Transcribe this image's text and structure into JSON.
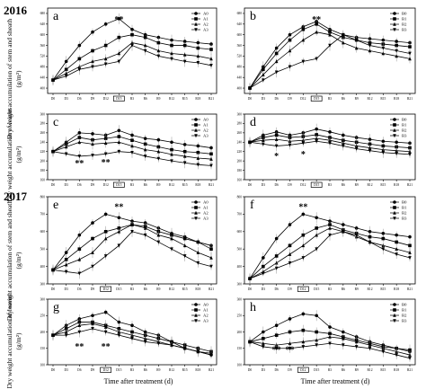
{
  "figure": {
    "years": [
      "2016",
      "2017"
    ],
    "ylabels": [
      "Dry weight accumulation of stem and sheath",
      "(g/m²)",
      "Dry weight accumulation of leaves",
      "(g/m²)"
    ],
    "xlabel": "Time after treatment (d)"
  },
  "chart_data": [
    {
      "panel": "a",
      "type": "line",
      "year": "2016",
      "categories": [
        "D0",
        "D3",
        "D6",
        "D9",
        "D12",
        "D15",
        "R3",
        "R6",
        "R9",
        "R12",
        "R15",
        "R18",
        "R21"
      ],
      "highlight_category": "D15",
      "ylim": [
        380,
        700
      ],
      "yticks": [
        400,
        440,
        480,
        520,
        560,
        600,
        640,
        680
      ],
      "annotations": [
        {
          "text": "**",
          "x": "D15",
          "y": 660
        }
      ],
      "series": [
        {
          "name": "A0",
          "marker": "circle",
          "values": [
            430,
            500,
            560,
            610,
            640,
            660,
            620,
            600,
            590,
            580,
            575,
            570,
            565
          ]
        },
        {
          "name": "A1",
          "marker": "square",
          "values": [
            430,
            470,
            510,
            540,
            560,
            590,
            600,
            590,
            570,
            560,
            560,
            550,
            545
          ]
        },
        {
          "name": "A2",
          "marker": "triangle",
          "values": [
            430,
            455,
            480,
            500,
            510,
            530,
            570,
            560,
            540,
            530,
            525,
            520,
            510
          ]
        },
        {
          "name": "A3",
          "marker": "down",
          "values": [
            430,
            445,
            470,
            480,
            490,
            500,
            560,
            540,
            520,
            510,
            500,
            495,
            485
          ]
        }
      ]
    },
    {
      "panel": "b",
      "type": "line",
      "year": "2016",
      "categories": [
        "D0",
        "D3",
        "D6",
        "D9",
        "D12",
        "D15",
        "R3",
        "R6",
        "R9",
        "R12",
        "R15",
        "R18",
        "R21"
      ],
      "highlight_category": "D15",
      "ylim": [
        380,
        700
      ],
      "yticks": [
        400,
        440,
        480,
        520,
        560,
        600,
        640,
        680
      ],
      "annotations": [
        {
          "text": "**",
          "x": "D15",
          "y": 660
        }
      ],
      "series": [
        {
          "name": "B0",
          "marker": "circle",
          "values": [
            400,
            480,
            550,
            600,
            630,
            650,
            620,
            600,
            590,
            585,
            580,
            575,
            570
          ]
        },
        {
          "name": "B1",
          "marker": "square",
          "values": [
            400,
            470,
            530,
            580,
            620,
            640,
            610,
            590,
            580,
            570,
            565,
            560,
            555
          ]
        },
        {
          "name": "B2",
          "marker": "triangle",
          "values": [
            400,
            450,
            500,
            540,
            580,
            610,
            600,
            570,
            550,
            540,
            530,
            520,
            510
          ]
        },
        {
          "name": "B3",
          "marker": "down",
          "values": [
            400,
            430,
            460,
            480,
            500,
            510,
            560,
            600,
            580,
            560,
            550,
            540,
            530
          ]
        }
      ]
    },
    {
      "panel": "c",
      "type": "line",
      "year": "2016",
      "categories": [
        "D0",
        "D3",
        "D6",
        "D9",
        "D12",
        "D15",
        "R3",
        "R6",
        "R9",
        "R12",
        "R15",
        "R18",
        "R21"
      ],
      "highlight_category": "D15",
      "ylim": [
        160,
        300
      ],
      "yticks": [
        160,
        180,
        200,
        220,
        240,
        260,
        280,
        300
      ],
      "annotations": [
        {
          "text": "**",
          "x": "D6",
          "y": 196
        },
        {
          "text": "**",
          "x": "D12",
          "y": 198
        }
      ],
      "series": [
        {
          "name": "A0",
          "marker": "circle",
          "values": [
            220,
            240,
            260,
            258,
            255,
            265,
            255,
            248,
            245,
            240,
            235,
            232,
            228
          ]
        },
        {
          "name": "A1",
          "marker": "square",
          "values": [
            220,
            236,
            250,
            245,
            248,
            252,
            244,
            236,
            230,
            224,
            220,
            218,
            215
          ]
        },
        {
          "name": "A2",
          "marker": "triangle",
          "values": [
            220,
            230,
            240,
            236,
            238,
            240,
            232,
            224,
            220,
            214,
            210,
            206,
            204
          ]
        },
        {
          "name": "A3",
          "marker": "down",
          "values": [
            220,
            215,
            210,
            212,
            215,
            220,
            218,
            210,
            205,
            200,
            196,
            192,
            190
          ]
        }
      ]
    },
    {
      "panel": "d",
      "type": "line",
      "year": "2016",
      "categories": [
        "D0",
        "D3",
        "D6",
        "D9",
        "D12",
        "D15",
        "R3",
        "R6",
        "R9",
        "R12",
        "R15",
        "R18",
        "R21"
      ],
      "highlight_category": "D15",
      "ylim": [
        160,
        300
      ],
      "yticks": [
        160,
        180,
        200,
        220,
        240,
        260,
        280,
        300
      ],
      "annotations": [
        {
          "text": "*",
          "x": "D6",
          "y": 212
        },
        {
          "text": "*",
          "x": "D12",
          "y": 216
        }
      ],
      "series": [
        {
          "name": "B0",
          "marker": "circle",
          "values": [
            240,
            255,
            262,
            255,
            260,
            268,
            262,
            255,
            250,
            246,
            242,
            240,
            238
          ]
        },
        {
          "name": "B1",
          "marker": "square",
          "values": [
            240,
            250,
            255,
            250,
            252,
            256,
            250,
            244,
            240,
            236,
            232,
            230,
            228
          ]
        },
        {
          "name": "B2",
          "marker": "triangle",
          "values": [
            240,
            244,
            246,
            242,
            244,
            248,
            244,
            238,
            232,
            228,
            224,
            222,
            220
          ]
        },
        {
          "name": "B3",
          "marker": "down",
          "values": [
            240,
            236,
            232,
            234,
            238,
            242,
            238,
            232,
            226,
            222,
            218,
            216,
            214
          ]
        }
      ]
    },
    {
      "panel": "e",
      "type": "line",
      "year": "2017",
      "categories": [
        "D0",
        "D3",
        "D6",
        "D9",
        "D12",
        "D15",
        "R3",
        "R6",
        "R9",
        "R12",
        "R15",
        "R18",
        "R21"
      ],
      "highlight_category": "D12",
      "ylim": [
        300,
        800
      ],
      "yticks": [
        300,
        400,
        500,
        600,
        700,
        800
      ],
      "annotations": [
        {
          "text": "**",
          "x": "D15",
          "y": 745
        }
      ],
      "series": [
        {
          "name": "A0",
          "marker": "circle",
          "values": [
            380,
            480,
            580,
            650,
            700,
            680,
            660,
            650,
            620,
            590,
            570,
            540,
            520
          ]
        },
        {
          "name": "A1",
          "marker": "square",
          "values": [
            380,
            440,
            500,
            560,
            600,
            620,
            640,
            630,
            600,
            580,
            560,
            540,
            500
          ]
        },
        {
          "name": "A2",
          "marker": "triangle",
          "values": [
            380,
            410,
            440,
            480,
            560,
            600,
            640,
            620,
            580,
            560,
            520,
            480,
            450
          ]
        },
        {
          "name": "A3",
          "marker": "down",
          "values": [
            380,
            370,
            360,
            400,
            460,
            520,
            600,
            580,
            540,
            500,
            460,
            420,
            400
          ]
        }
      ]
    },
    {
      "panel": "f",
      "type": "line",
      "year": "2017",
      "categories": [
        "D0",
        "D3",
        "D6",
        "D9",
        "D12",
        "D15",
        "R3",
        "R6",
        "R9",
        "R12",
        "R15",
        "R18",
        "R21"
      ],
      "highlight_category": "D12",
      "ylim": [
        300,
        800
      ],
      "yticks": [
        300,
        400,
        500,
        600,
        700,
        800
      ],
      "annotations": [
        {
          "text": "**",
          "x": "D12",
          "y": 745
        }
      ],
      "series": [
        {
          "name": "B0",
          "marker": "circle",
          "values": [
            330,
            450,
            560,
            640,
            700,
            680,
            660,
            640,
            620,
            600,
            590,
            580,
            570
          ]
        },
        {
          "name": "B1",
          "marker": "square",
          "values": [
            330,
            400,
            460,
            520,
            580,
            620,
            640,
            610,
            590,
            570,
            560,
            540,
            520
          ]
        },
        {
          "name": "B2",
          "marker": "triangle",
          "values": [
            330,
            370,
            420,
            470,
            520,
            580,
            620,
            600,
            570,
            540,
            520,
            500,
            480
          ]
        },
        {
          "name": "B3",
          "marker": "down",
          "values": [
            330,
            360,
            390,
            420,
            450,
            500,
            580,
            600,
            580,
            540,
            500,
            470,
            450
          ]
        }
      ]
    },
    {
      "panel": "g",
      "type": "line",
      "year": "2017",
      "categories": [
        "D0",
        "D3",
        "D6",
        "D9",
        "D12",
        "D15",
        "R3",
        "R6",
        "R9",
        "R12",
        "R15",
        "R18",
        "R21"
      ],
      "highlight_category": "D12",
      "ylim": [
        100,
        300
      ],
      "yticks": [
        100,
        150,
        200,
        250,
        300
      ],
      "annotations": [
        {
          "text": "**",
          "x": "D6",
          "y": 158
        },
        {
          "text": "**",
          "x": "D12",
          "y": 158
        }
      ],
      "series": [
        {
          "name": "A0",
          "marker": "circle",
          "values": [
            190,
            220,
            240,
            250,
            260,
            230,
            220,
            200,
            190,
            170,
            150,
            140,
            130
          ]
        },
        {
          "name": "A1",
          "marker": "square",
          "values": [
            190,
            210,
            230,
            230,
            220,
            210,
            200,
            190,
            180,
            170,
            160,
            150,
            140
          ]
        },
        {
          "name": "A2",
          "marker": "triangle",
          "values": [
            190,
            200,
            220,
            225,
            215,
            200,
            190,
            180,
            170,
            160,
            150,
            140,
            135
          ]
        },
        {
          "name": "A3",
          "marker": "down",
          "values": [
            190,
            190,
            200,
            210,
            200,
            190,
            180,
            170,
            165,
            160,
            150,
            140,
            130
          ]
        }
      ]
    },
    {
      "panel": "h",
      "type": "line",
      "year": "2017",
      "categories": [
        "D0",
        "D3",
        "D6",
        "D9",
        "D12",
        "D15",
        "R3",
        "R6",
        "R9",
        "R12",
        "R15",
        "R18",
        "R21"
      ],
      "highlight_category": "D12",
      "ylim": [
        100,
        300
      ],
      "yticks": [
        100,
        150,
        200,
        250,
        300
      ],
      "annotations": [
        {
          "text": "**",
          "x": "D6",
          "y": 148
        },
        {
          "text": "**",
          "x": "D9",
          "y": 148
        }
      ],
      "series": [
        {
          "name": "B0",
          "marker": "circle",
          "values": [
            170,
            200,
            220,
            240,
            255,
            250,
            215,
            200,
            185,
            170,
            160,
            150,
            140
          ]
        },
        {
          "name": "B1",
          "marker": "square",
          "values": [
            170,
            180,
            190,
            200,
            205,
            200,
            195,
            185,
            175,
            165,
            155,
            150,
            145
          ]
        },
        {
          "name": "B2",
          "marker": "triangle",
          "values": [
            170,
            165,
            160,
            165,
            170,
            175,
            185,
            180,
            170,
            160,
            150,
            140,
            130
          ]
        },
        {
          "name": "B3",
          "marker": "down",
          "values": [
            170,
            155,
            150,
            150,
            155,
            160,
            165,
            160,
            155,
            150,
            140,
            130,
            120
          ]
        }
      ]
    }
  ]
}
